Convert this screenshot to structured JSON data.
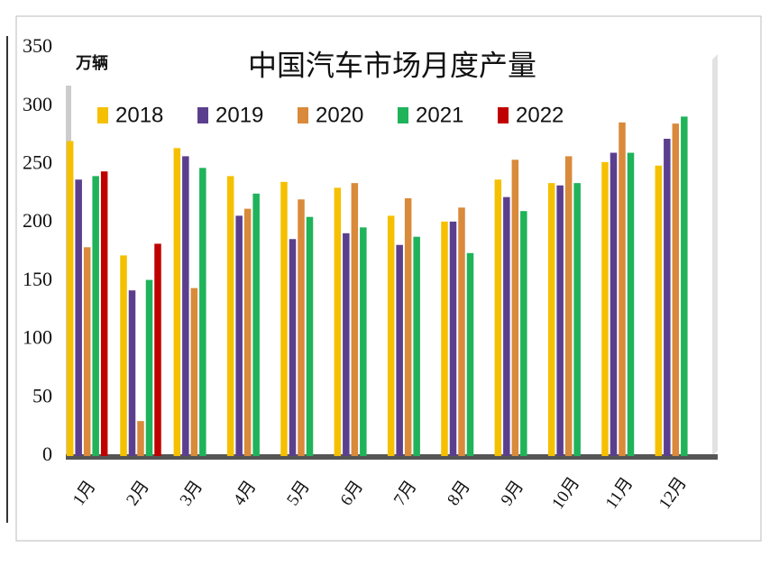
{
  "chart_data": {
    "type": "bar",
    "title": "中国汽车市场月度产量",
    "y_unit": "万辆",
    "categories": [
      "1月",
      "2月",
      "3月",
      "4月",
      "5月",
      "6月",
      "7月",
      "8月",
      "9月",
      "10月",
      "11月",
      "12月"
    ],
    "series": [
      {
        "name": "2018",
        "color": "#f5c000",
        "values": [
          270,
          172,
          264,
          240,
          235,
          230,
          206,
          201,
          237,
          234,
          252,
          249
        ]
      },
      {
        "name": "2019",
        "color": "#5b3f8f",
        "values": [
          237,
          142,
          257,
          206,
          186,
          191,
          181,
          201,
          222,
          232,
          260,
          272
        ]
      },
      {
        "name": "2020",
        "color": "#d98a3a",
        "values": [
          179,
          30,
          144,
          212,
          220,
          234,
          221,
          213,
          254,
          257,
          286,
          285
        ]
      },
      {
        "name": "2021",
        "color": "#1fb35a",
        "values": [
          240,
          151,
          247,
          225,
          205,
          196,
          188,
          174,
          210,
          234,
          260,
          291
        ]
      },
      {
        "name": "2022",
        "color": "#c00000",
        "values": [
          244,
          182,
          null,
          null,
          null,
          null,
          null,
          null,
          null,
          null,
          null,
          null
        ]
      }
    ],
    "ylim": [
      0,
      350
    ],
    "yticks": [
      0,
      50,
      100,
      150,
      200,
      250,
      300,
      350
    ],
    "grid": false
  }
}
